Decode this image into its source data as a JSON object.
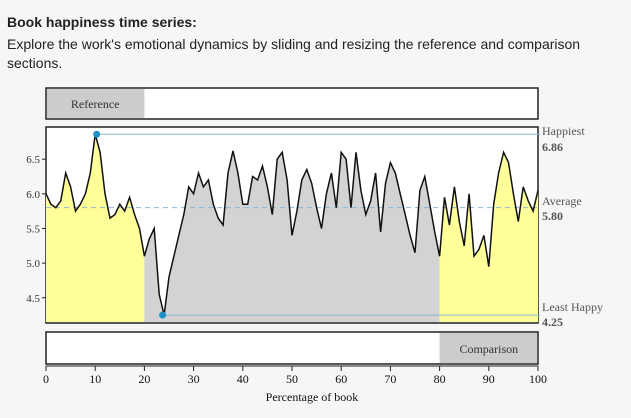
{
  "header": {
    "title": "Book happiness time series:",
    "subtitle": "Explore the work's emotional dynamics by sliding and resizing the reference and comparison sections."
  },
  "controls": {
    "reference_label": "Reference",
    "comparison_label": "Comparison",
    "reference_range": [
      0,
      20
    ],
    "comparison_range": [
      80,
      100
    ]
  },
  "stats": {
    "happiest_label": "Happiest",
    "happiest_value": "6.86",
    "average_label": "Average",
    "average_value": "5.80",
    "least_label": "Least Happy",
    "least_value": "4.25"
  },
  "colors": {
    "reference_fill": "#ffff99",
    "middle_fill": "#d3d3d3",
    "comparison_fill": "#ffff99",
    "marker": "#1f8fc7",
    "average_line": "#8ab8d6",
    "handle_fill": "#cccccc"
  },
  "chart_data": {
    "type": "area",
    "xlabel": "Percentage of book",
    "ylabel": "",
    "xlim": [
      0,
      100
    ],
    "ylim": [
      4.15,
      6.95
    ],
    "xticks": [
      0,
      10,
      20,
      30,
      40,
      50,
      60,
      70,
      80,
      90,
      100
    ],
    "yticks": [
      4.5,
      5.0,
      5.5,
      6.0,
      6.5
    ],
    "ytick_labels": [
      "4.5",
      "5.0",
      "5.5",
      "6.0",
      "6.5"
    ],
    "max_point": {
      "x": 10.3,
      "y": 6.86
    },
    "min_point": {
      "x": 23.7,
      "y": 4.25
    },
    "average": 5.8,
    "series": [
      {
        "x": [
          0,
          1,
          2,
          3,
          4,
          5,
          6,
          7,
          8,
          9,
          10,
          11,
          12,
          13,
          14,
          15,
          16,
          17,
          18,
          19,
          20,
          21,
          22,
          23,
          24,
          25,
          26,
          27,
          28,
          29,
          30,
          31,
          32,
          33,
          34,
          35,
          36,
          37,
          38,
          39,
          40,
          41,
          42,
          43,
          44,
          45,
          46,
          47,
          48,
          49,
          50,
          51,
          52,
          53,
          54,
          55,
          56,
          57,
          58,
          59,
          60,
          61,
          62,
          63,
          64,
          65,
          66,
          67,
          68,
          69,
          70,
          71,
          72,
          73,
          74,
          75,
          76,
          77,
          78,
          79,
          80,
          81,
          82,
          83,
          84,
          85,
          86,
          87,
          88,
          89,
          90,
          91,
          92,
          93,
          94,
          95,
          96,
          97,
          98,
          99,
          100
        ],
        "y": [
          6.0,
          5.85,
          5.8,
          5.9,
          6.3,
          6.1,
          5.75,
          5.85,
          6.0,
          6.3,
          6.86,
          6.6,
          6.0,
          5.65,
          5.7,
          5.85,
          5.75,
          5.95,
          5.7,
          5.5,
          5.1,
          5.35,
          5.5,
          4.55,
          4.25,
          4.8,
          5.1,
          5.4,
          5.7,
          6.1,
          6.0,
          6.3,
          6.1,
          6.2,
          5.85,
          5.65,
          5.55,
          6.3,
          6.62,
          6.3,
          5.85,
          5.85,
          6.25,
          6.2,
          6.4,
          6.1,
          5.7,
          6.5,
          6.6,
          6.2,
          5.4,
          5.75,
          6.2,
          6.35,
          6.15,
          5.8,
          5.5,
          6.0,
          6.3,
          5.8,
          6.6,
          6.5,
          5.8,
          6.6,
          6.05,
          5.7,
          5.9,
          6.3,
          5.45,
          6.15,
          6.45,
          6.3,
          6.0,
          5.7,
          5.4,
          5.15,
          6.05,
          6.25,
          5.85,
          5.45,
          5.1,
          5.95,
          5.55,
          6.1,
          5.6,
          5.25,
          6.0,
          5.1,
          5.2,
          5.4,
          4.95,
          5.85,
          6.3,
          6.6,
          6.45,
          6.0,
          5.6,
          6.1,
          5.9,
          5.75,
          6.05
        ]
      }
    ]
  }
}
